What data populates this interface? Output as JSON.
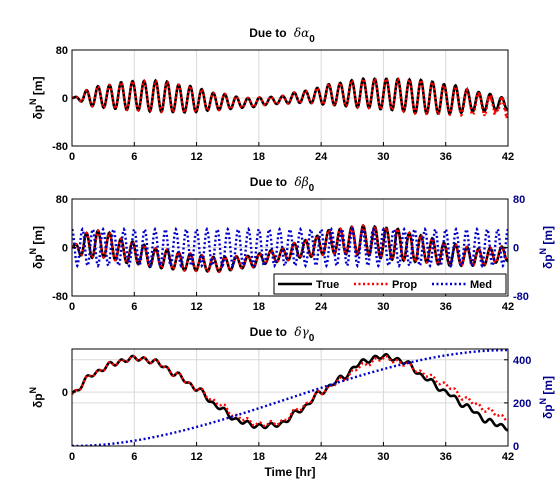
{
  "colors": {
    "true": "#000000",
    "prop": "#ff0000",
    "med": "#0000cc",
    "axis": "#000000",
    "grid": "#d9d9d9",
    "right_axis": "#00008b"
  },
  "chart_data": [
    {
      "type": "line",
      "title_prefix": "Due to",
      "title_symbol": "δα",
      "title_sub": "0",
      "ylabel": {
        "prefix": "δp",
        "sup": "N",
        "unit": " [m]"
      },
      "xlabel": "",
      "xlim": [
        0,
        42
      ],
      "ylim": [
        -80,
        80
      ],
      "xticks": [
        "0",
        "6",
        "12",
        "18",
        "24",
        "30",
        "36",
        "42"
      ],
      "yticks": [
        "-80",
        "0",
        "80"
      ],
      "grid": true,
      "legend": null,
      "series": [
        {
          "name": "True",
          "style": "solid",
          "color": "#000000",
          "model": {
            "amp": [
              6,
              18,
              24,
              26,
              22,
              14,
              8,
              6,
              10,
              18,
              24,
              26,
              28,
              24,
              16,
              10
            ],
            "freq_per_hr": 0.9,
            "offset": [
              0,
              2,
              4,
              3,
              -2,
              -6,
              -8,
              -4,
              2,
              6,
              8,
              6,
              2,
              -2,
              -6,
              -10
            ]
          }
        },
        {
          "name": "Prop",
          "style": "dotted",
          "color": "#ff0000",
          "model": {
            "amp": [
              6,
              18,
              24,
              26,
              22,
              14,
              8,
              6,
              10,
              18,
              24,
              26,
              28,
              24,
              18,
              14
            ],
            "freq_per_hr": 0.9,
            "offset": [
              0,
              2,
              4,
              3,
              -2,
              -6,
              -8,
              -4,
              2,
              6,
              8,
              6,
              2,
              -4,
              -10,
              -16
            ],
            "noise_after_hr": 36
          }
        }
      ]
    },
    {
      "type": "line",
      "title_prefix": "Due to",
      "title_symbol": "δβ",
      "title_sub": "0",
      "ylabel": {
        "prefix": "δp",
        "sup": "N",
        "unit": " [m]"
      },
      "ylabel_right": {
        "prefix": "δp",
        "sup": "N",
        "unit": " [m]"
      },
      "xlabel": "",
      "xlim": [
        0,
        42
      ],
      "ylim": [
        -80,
        80
      ],
      "ylim_right": [
        -80,
        80
      ],
      "xticks": [
        "0",
        "6",
        "12",
        "18",
        "24",
        "30",
        "36",
        "42"
      ],
      "yticks": [
        "-80",
        "0",
        "80"
      ],
      "yticks_right": [
        "-80",
        "0",
        "80"
      ],
      "grid": true,
      "legend": {
        "position": "lower-right",
        "entries": [
          "True",
          "Prop",
          "Med"
        ]
      },
      "series": [
        {
          "name": "True",
          "style": "solid",
          "color": "#000000",
          "model": {
            "amp": [
              20,
              22,
              18,
              16,
              14,
              12,
              10,
              10,
              14,
              20,
              24,
              26,
              22,
              18,
              14,
              12
            ],
            "freq_per_hr": 0.9,
            "offset": [
              0,
              6,
              -8,
              -18,
              -24,
              -28,
              -24,
              -14,
              -2,
              10,
              12,
              6,
              -2,
              -12,
              -16,
              -10
            ]
          }
        },
        {
          "name": "Prop",
          "style": "dotted",
          "color": "#ff0000",
          "model": {
            "amp": [
              20,
              22,
              18,
              16,
              14,
              12,
              10,
              10,
              14,
              20,
              24,
              26,
              22,
              18,
              14,
              12
            ],
            "freq_per_hr": 0.9,
            "offset": [
              0,
              6,
              -8,
              -18,
              -24,
              -28,
              -24,
              -14,
              -2,
              10,
              12,
              6,
              -2,
              -12,
              -16,
              -10
            ]
          }
        },
        {
          "name": "Med",
          "style": "dotted",
          "color": "#0000cc",
          "axis": "right",
          "model": {
            "amp": [
              30,
              30,
              30,
              30,
              30,
              30,
              30,
              30,
              30,
              30,
              30,
              30,
              30,
              30,
              30,
              30
            ],
            "freq_per_hr": 1.0,
            "offset": [
              0,
              0,
              0,
              0,
              0,
              0,
              0,
              0,
              0,
              0,
              0,
              0,
              0,
              0,
              0,
              0
            ],
            "phase_to_max": true
          }
        }
      ]
    },
    {
      "type": "line",
      "title_prefix": "Due to",
      "title_symbol": "δγ",
      "title_sub": "0",
      "ylabel": {
        "prefix": "δp",
        "sup": "N",
        "unit": ""
      },
      "ylabel_right": {
        "prefix": "δp",
        "sup": "N",
        "unit": " [m]"
      },
      "xlabel": "Time [hr]",
      "xlim": [
        0,
        42
      ],
      "ylim": [
        -15,
        12
      ],
      "ylim_right": [
        0,
        450
      ],
      "xticks": [
        "0",
        "6",
        "12",
        "18",
        "24",
        "30",
        "36",
        "42"
      ],
      "yticks": [
        "0"
      ],
      "yticks_right": [
        "0",
        "200",
        "400"
      ],
      "grid": true,
      "legend": null,
      "series": [
        {
          "name": "True",
          "style": "solid",
          "color": "#000000",
          "points": [
            [
              0,
              -0.5
            ],
            [
              2,
              5
            ],
            [
              4,
              8
            ],
            [
              6,
              9.5
            ],
            [
              8,
              8.5
            ],
            [
              10,
              5
            ],
            [
              12,
              1
            ],
            [
              14,
              -4
            ],
            [
              16,
              -8
            ],
            [
              18,
              -9.5
            ],
            [
              20,
              -9
            ],
            [
              22,
              -5
            ],
            [
              24,
              0
            ],
            [
              26,
              4
            ],
            [
              28,
              8.5
            ],
            [
              30,
              10
            ],
            [
              32,
              8.5
            ],
            [
              34,
              4
            ],
            [
              36,
              0
            ],
            [
              38,
              -4
            ],
            [
              40,
              -8
            ],
            [
              42,
              -10
            ]
          ]
        },
        {
          "name": "Prop",
          "style": "dotted",
          "color": "#ff0000",
          "points": [
            [
              0,
              -0.5
            ],
            [
              2,
              5
            ],
            [
              4,
              8
            ],
            [
              6,
              9.5
            ],
            [
              8,
              8.5
            ],
            [
              10,
              5
            ],
            [
              12,
              1
            ],
            [
              14,
              -3
            ],
            [
              16,
              -7
            ],
            [
              18,
              -9
            ],
            [
              20,
              -8.5
            ],
            [
              22,
              -4.5
            ],
            [
              24,
              0
            ],
            [
              26,
              3.5
            ],
            [
              28,
              7.5
            ],
            [
              30,
              9.5
            ],
            [
              32,
              8
            ],
            [
              34,
              5
            ],
            [
              36,
              2
            ],
            [
              38,
              -2
            ],
            [
              40,
              -5
            ],
            [
              42,
              -7.5
            ]
          ]
        },
        {
          "name": "Med",
          "style": "dotted",
          "color": "#0000cc",
          "axis": "right",
          "points": [
            [
              0,
              0
            ],
            [
              42,
              445
            ]
          ]
        }
      ]
    }
  ]
}
